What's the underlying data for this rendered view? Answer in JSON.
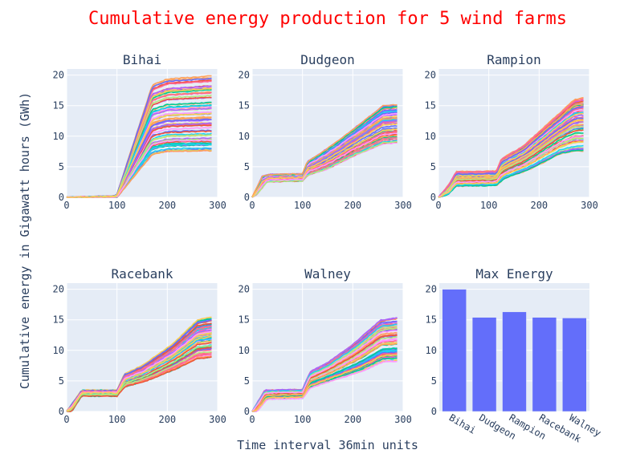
{
  "title": "Cumulative energy production for 5 wind farms",
  "title_color": "#ff0000",
  "ylabel": "Cumulative energy in Gigawatt hours (GWh)",
  "xlabel": "Time interval 36min units",
  "chart_data": [
    {
      "type": "line",
      "title": "Bihai",
      "xlim": [
        0,
        300
      ],
      "ylim": [
        0,
        21
      ],
      "xticks": [
        "0",
        "100",
        "200",
        "300"
      ],
      "yticks": [
        "0",
        "5",
        "10",
        "15",
        "20"
      ],
      "note_series": "many overlapping series, envelope shown",
      "upper": [
        [
          0,
          0
        ],
        [
          95,
          0.2
        ],
        [
          100,
          0.5
        ],
        [
          170,
          18.5
        ],
        [
          200,
          19.5
        ],
        [
          290,
          20
        ]
      ],
      "lower": [
        [
          0,
          0
        ],
        [
          100,
          0
        ],
        [
          160,
          6
        ],
        [
          170,
          7
        ],
        [
          200,
          7.5
        ],
        [
          290,
          7.6
        ]
      ]
    },
    {
      "type": "line",
      "title": "Dudgeon",
      "xlim": [
        0,
        300
      ],
      "ylim": [
        0,
        21
      ],
      "xticks": [
        "0",
        "100",
        "200",
        "300"
      ],
      "yticks": [
        "0",
        "5",
        "10",
        "15",
        "20"
      ],
      "upper": [
        [
          0,
          0
        ],
        [
          20,
          3.5
        ],
        [
          35,
          3.8
        ],
        [
          100,
          3.9
        ],
        [
          110,
          6
        ],
        [
          130,
          7
        ],
        [
          180,
          10
        ],
        [
          260,
          15.3
        ],
        [
          290,
          15.5
        ]
      ],
      "lower": [
        [
          0,
          0
        ],
        [
          10,
          0.5
        ],
        [
          30,
          2.5
        ],
        [
          100,
          2.6
        ],
        [
          110,
          3.5
        ],
        [
          150,
          4.5
        ],
        [
          200,
          6.5
        ],
        [
          260,
          8.5
        ],
        [
          290,
          8.7
        ]
      ]
    },
    {
      "type": "line",
      "title": "Rampion",
      "xlim": [
        0,
        300
      ],
      "ylim": [
        0,
        21
      ],
      "xticks": [
        "0",
        "100",
        "200",
        "300"
      ],
      "yticks": [
        "0",
        "5",
        "10",
        "15",
        "20"
      ],
      "upper": [
        [
          0,
          0
        ],
        [
          20,
          2
        ],
        [
          35,
          4.2
        ],
        [
          115,
          4.3
        ],
        [
          125,
          6.3
        ],
        [
          170,
          8.5
        ],
        [
          230,
          13
        ],
        [
          270,
          16
        ],
        [
          290,
          16.3
        ]
      ],
      "lower": [
        [
          0,
          0
        ],
        [
          20,
          0.5
        ],
        [
          35,
          1.8
        ],
        [
          115,
          1.9
        ],
        [
          130,
          3
        ],
        [
          180,
          4.5
        ],
        [
          240,
          7
        ],
        [
          270,
          7.5
        ],
        [
          290,
          7.5
        ]
      ]
    },
    {
      "type": "line",
      "title": "Racebank",
      "xlim": [
        0,
        300
      ],
      "ylim": [
        0,
        21
      ],
      "xticks": [
        "0",
        "100",
        "200",
        "300"
      ],
      "yticks": [
        "0",
        "5",
        "10",
        "15",
        "20"
      ],
      "upper": [
        [
          0,
          0
        ],
        [
          30,
          3.5
        ],
        [
          100,
          3.5
        ],
        [
          115,
          6.2
        ],
        [
          150,
          7.5
        ],
        [
          210,
          11
        ],
        [
          260,
          15
        ],
        [
          290,
          15.5
        ]
      ],
      "lower": [
        [
          0,
          0
        ],
        [
          10,
          0
        ],
        [
          30,
          2.5
        ],
        [
          100,
          2.5
        ],
        [
          115,
          4
        ],
        [
          160,
          5
        ],
        [
          220,
          7
        ],
        [
          260,
          8.6
        ],
        [
          290,
          8.8
        ]
      ]
    },
    {
      "type": "line",
      "title": "Walney",
      "xlim": [
        0,
        300
      ],
      "ylim": [
        0,
        21
      ],
      "xticks": [
        "0",
        "100",
        "200",
        "300"
      ],
      "yticks": [
        "0",
        "5",
        "10",
        "15",
        "20"
      ],
      "upper": [
        [
          0,
          0
        ],
        [
          25,
          3.5
        ],
        [
          100,
          3.6
        ],
        [
          115,
          6.5
        ],
        [
          150,
          8
        ],
        [
          200,
          11
        ],
        [
          255,
          15
        ],
        [
          290,
          15.4
        ]
      ],
      "lower": [
        [
          0,
          0
        ],
        [
          10,
          0
        ],
        [
          30,
          2
        ],
        [
          100,
          2.1
        ],
        [
          115,
          3.8
        ],
        [
          160,
          5
        ],
        [
          220,
          6.5
        ],
        [
          260,
          8
        ],
        [
          290,
          8.1
        ]
      ]
    },
    {
      "type": "bar",
      "title": "Max Energy",
      "categories": [
        "Bihai",
        "Dudgeon",
        "Rampion",
        "Racebank",
        "Walney"
      ],
      "values": [
        20,
        15.4,
        16.3,
        15.4,
        15.3
      ],
      "ylim": [
        0,
        21
      ],
      "yticks": [
        "0",
        "5",
        "10",
        "15",
        "20"
      ],
      "color": "#636efa"
    }
  ],
  "palette": [
    "#636efa",
    "#EF553B",
    "#00cc96",
    "#ab63fa",
    "#FFA15A",
    "#19d3f3",
    "#FF6692",
    "#B6E880",
    "#FF97FF",
    "#FECB52"
  ]
}
